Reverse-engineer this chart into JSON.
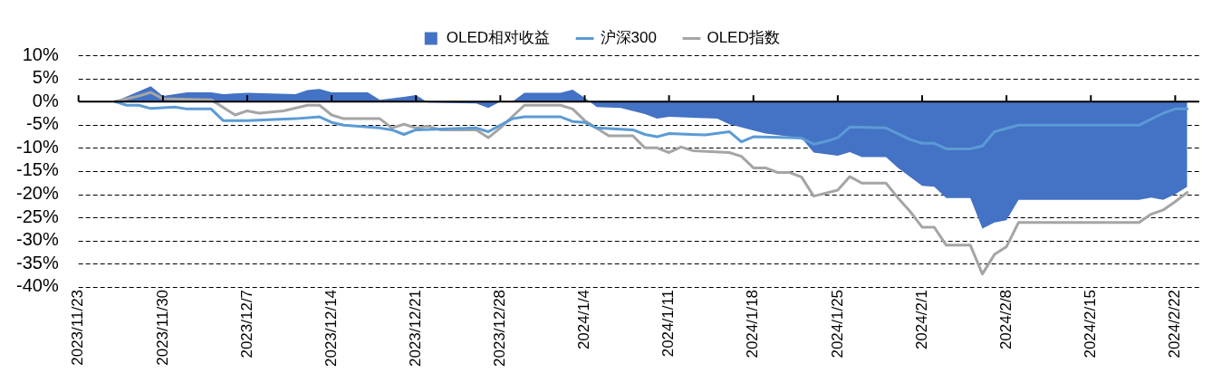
{
  "chart_data": {
    "type": "line",
    "legend": "top",
    "grid": "y",
    "xlim": [
      "2023-11-23",
      "2024-02-24"
    ],
    "xticks": [
      {
        "value": "2023-11-23",
        "label": "2023/11/23"
      },
      {
        "value": "2023-11-30",
        "label": "2023/11/30"
      },
      {
        "value": "2023-12-07",
        "label": "2023/12/7"
      },
      {
        "value": "2023-12-14",
        "label": "2023/12/14"
      },
      {
        "value": "2023-12-21",
        "label": "2023/12/21"
      },
      {
        "value": "2023-12-28",
        "label": "2023/12/28"
      },
      {
        "value": "2024-01-04",
        "label": "2024/1/4"
      },
      {
        "value": "2024-01-11",
        "label": "2024/1/11"
      },
      {
        "value": "2024-01-18",
        "label": "2024/1/18"
      },
      {
        "value": "2024-01-25",
        "label": "2024/1/25"
      },
      {
        "value": "2024-02-01",
        "label": "2024/2/1"
      },
      {
        "value": "2024-02-08",
        "label": "2024/2/8"
      },
      {
        "value": "2024-02-15",
        "label": "2024/2/15"
      },
      {
        "value": "2024-02-22",
        "label": "2024/2/22"
      }
    ],
    "ylim": [
      -40,
      10
    ],
    "yticks": [
      {
        "value": 10,
        "label": "10%"
      },
      {
        "value": 5,
        "label": "5%"
      },
      {
        "value": 0,
        "label": "0%"
      },
      {
        "value": -5,
        "label": "-5%"
      },
      {
        "value": -10,
        "label": "-10%"
      },
      {
        "value": -15,
        "label": "-15%"
      },
      {
        "value": -20,
        "label": "-20%"
      },
      {
        "value": -25,
        "label": "-25%"
      },
      {
        "value": -30,
        "label": "-30%"
      },
      {
        "value": -35,
        "label": "-35%"
      },
      {
        "value": -40,
        "label": "-40%"
      }
    ],
    "series": [
      {
        "name": "OLED相对收益",
        "type": "area",
        "color": "#4472c4",
        "x": [
          "2023-11-26",
          "2023-11-29",
          "2023-11-30",
          "2023-12-02",
          "2023-12-04",
          "2023-12-05",
          "2023-12-07",
          "2023-12-11",
          "2023-12-12",
          "2023-12-13",
          "2023-12-14",
          "2023-12-17",
          "2023-12-18",
          "2023-12-20",
          "2023-12-21",
          "2023-12-22",
          "2023-12-26",
          "2023-12-27",
          "2023-12-28",
          "2023-12-29",
          "2023-12-30",
          "2024-01-02",
          "2024-01-03",
          "2024-01-04",
          "2024-01-05",
          "2024-01-07",
          "2024-01-09",
          "2024-01-10",
          "2024-01-11",
          "2024-01-15",
          "2024-01-16",
          "2024-01-19",
          "2024-01-22",
          "2024-01-23",
          "2024-01-25",
          "2024-01-26",
          "2024-01-27",
          "2024-01-29",
          "2024-01-30",
          "2024-02-01",
          "2024-02-02",
          "2024-02-03",
          "2024-02-05",
          "2024-02-06",
          "2024-02-07",
          "2024-02-08",
          "2024-02-09",
          "2024-02-19",
          "2024-02-20",
          "2024-02-21",
          "2024-02-22",
          "2024-02-23"
        ],
        "values": [
          0,
          3.3,
          1.2,
          2,
          2,
          1.6,
          1.9,
          1.6,
          2.5,
          2.7,
          2,
          2,
          0.4,
          1,
          1.4,
          -0.2,
          -0.4,
          -1.4,
          0,
          0,
          1.9,
          1.9,
          2.6,
          0.8,
          -1.2,
          -1.4,
          -2.7,
          -3.7,
          -3.3,
          -3.7,
          -4.9,
          -6.9,
          -7.9,
          -11,
          -11.7,
          -10.9,
          -12,
          -12,
          -14.3,
          -18.2,
          -18.4,
          -20.8,
          -20.8,
          -27.4,
          -26.1,
          -25.6,
          -21.2,
          -21.2,
          -20.7,
          -21.2,
          -20,
          -18.4
        ]
      },
      {
        "name": "沪深300",
        "type": "line",
        "color": "#5b9bd5",
        "x": [
          "2023-11-26",
          "2023-11-27",
          "2023-11-28",
          "2023-11-29",
          "2023-12-01",
          "2023-12-02",
          "2023-12-04",
          "2023-12-05",
          "2023-12-07",
          "2023-12-11",
          "2023-12-13",
          "2023-12-14",
          "2023-12-15",
          "2023-12-18",
          "2023-12-19",
          "2023-12-20",
          "2023-12-21",
          "2023-12-26",
          "2023-12-27",
          "2023-12-29",
          "2023-12-30",
          "2024-01-02",
          "2024-01-03",
          "2024-01-04",
          "2024-01-05",
          "2024-01-08",
          "2024-01-09",
          "2024-01-10",
          "2024-01-11",
          "2024-01-14",
          "2024-01-16",
          "2024-01-17",
          "2024-01-18",
          "2024-01-21",
          "2024-01-22",
          "2024-01-23",
          "2024-01-24",
          "2024-01-25",
          "2024-01-26",
          "2024-01-29",
          "2024-01-31",
          "2024-02-01",
          "2024-02-02",
          "2024-02-03",
          "2024-02-05",
          "2024-02-06",
          "2024-02-07",
          "2024-02-09",
          "2024-02-19",
          "2024-02-20",
          "2024-02-21",
          "2024-02-22",
          "2024-02-23"
        ],
        "values": [
          0,
          -0.8,
          -0.8,
          -1.5,
          -1.2,
          -1.6,
          -1.6,
          -4.1,
          -4.1,
          -3.7,
          -3.3,
          -4.5,
          -5.1,
          -5.7,
          -6.1,
          -7.1,
          -6.1,
          -5.7,
          -6.5,
          -3.7,
          -3.3,
          -3.3,
          -4.3,
          -4.5,
          -5.7,
          -6.1,
          -7.1,
          -7.6,
          -6.9,
          -7.2,
          -6.5,
          -8.7,
          -7.6,
          -7.8,
          -7.9,
          -9.2,
          -8.6,
          -7.8,
          -5.5,
          -5.7,
          -8.2,
          -9,
          -9,
          -10.2,
          -10.2,
          -9.6,
          -6.5,
          -5.1,
          -5.1,
          -3.8,
          -2.5,
          -1.6,
          -1.6
        ]
      },
      {
        "name": "OLED指数",
        "type": "line",
        "color": "#a5a5a5",
        "x": [
          "2023-11-26",
          "2023-11-28",
          "2023-11-29",
          "2023-11-30",
          "2023-12-04",
          "2023-12-06",
          "2023-12-07",
          "2023-12-08",
          "2023-12-10",
          "2023-12-12",
          "2023-12-13",
          "2023-12-14",
          "2023-12-15",
          "2023-12-18",
          "2023-12-19",
          "2023-12-20",
          "2023-12-21",
          "2023-12-22",
          "2023-12-23",
          "2023-12-26",
          "2023-12-27",
          "2023-12-28",
          "2023-12-30",
          "2024-01-02",
          "2024-01-03",
          "2024-01-04",
          "2024-01-06",
          "2024-01-08",
          "2024-01-09",
          "2024-01-10",
          "2024-01-11",
          "2024-01-12",
          "2024-01-13",
          "2024-01-16",
          "2024-01-17",
          "2024-01-18",
          "2024-01-19",
          "2024-01-20",
          "2024-01-21",
          "2024-01-22",
          "2024-01-23",
          "2024-01-25",
          "2024-01-26",
          "2024-01-27",
          "2024-01-29",
          "2024-01-30",
          "2024-01-31",
          "2024-02-01",
          "2024-02-02",
          "2024-02-03",
          "2024-02-05",
          "2024-02-06",
          "2024-02-07",
          "2024-02-08",
          "2024-02-09",
          "2024-02-19",
          "2024-02-20",
          "2024-02-21",
          "2024-02-22",
          "2024-02-23"
        ],
        "values": [
          0,
          1.2,
          2,
          0.6,
          0.4,
          -2.9,
          -2,
          -2.5,
          -2,
          -0.8,
          -0.8,
          -2.9,
          -3.7,
          -3.7,
          -5.7,
          -4.9,
          -5.7,
          -5.3,
          -6.1,
          -6.1,
          -7.8,
          -5.7,
          -0.8,
          -0.8,
          -1.6,
          -4.1,
          -7.4,
          -7.4,
          -10,
          -10,
          -11,
          -9.8,
          -10.6,
          -11,
          -11.8,
          -14.3,
          -14.3,
          -15.3,
          -15.3,
          -16.3,
          -20.4,
          -19.1,
          -16.2,
          -17.6,
          -17.6,
          -20.8,
          -23.7,
          -27.1,
          -27.1,
          -31,
          -31,
          -37.2,
          -33,
          -31.3,
          -26.1,
          -26.1,
          -24.3,
          -23.4,
          -21.6,
          -19.6
        ]
      }
    ]
  }
}
